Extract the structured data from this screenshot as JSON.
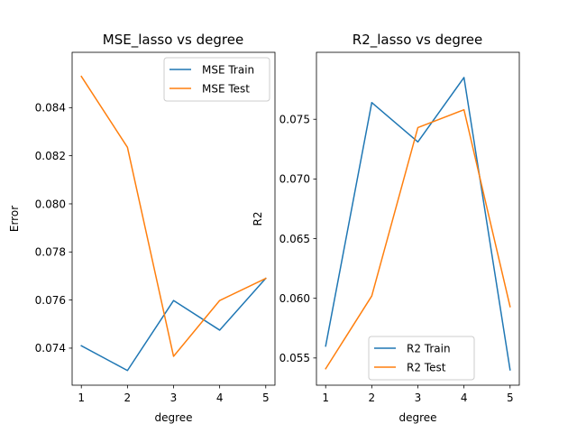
{
  "chart_data": [
    {
      "type": "line",
      "title": "MSE_lasso vs degree",
      "xlabel": "degree",
      "ylabel": "Error",
      "x": [
        1,
        2,
        3,
        4,
        5
      ],
      "xticks": [
        "1",
        "2",
        "3",
        "4",
        "5"
      ],
      "xlim": [
        0.8,
        5.2
      ],
      "ylim": [
        0.07246,
        0.0863
      ],
      "yticks": [
        0.074,
        0.076,
        0.078,
        0.08,
        0.082,
        0.084
      ],
      "ytick_labels": [
        "0.074",
        "0.076",
        "0.078",
        "0.080",
        "0.082",
        "0.084"
      ],
      "legend_position": "top-right",
      "grid": false,
      "series": [
        {
          "name": "MSE Train",
          "color": "#1f77b4",
          "values": [
            0.0741,
            0.07307,
            0.07598,
            0.07475,
            0.0769
          ]
        },
        {
          "name": "MSE Test",
          "color": "#ff7f0e",
          "values": [
            0.0853,
            0.08235,
            0.07366,
            0.07598,
            0.0769
          ]
        }
      ]
    },
    {
      "type": "line",
      "title": "R2_lasso vs degree",
      "xlabel": "degree",
      "ylabel": "R2",
      "x": [
        1,
        2,
        3,
        4,
        5
      ],
      "xticks": [
        "1",
        "2",
        "3",
        "4",
        "5"
      ],
      "xlim": [
        0.8,
        5.2
      ],
      "ylim": [
        0.05272,
        0.08061
      ],
      "yticks": [
        0.055,
        0.06,
        0.065,
        0.07,
        0.075
      ],
      "ytick_labels": [
        "0.055",
        "0.060",
        "0.065",
        "0.070",
        "0.075"
      ],
      "legend_position": "bottom-center",
      "grid": false,
      "series": [
        {
          "name": "R2 Train",
          "color": "#1f77b4",
          "values": [
            0.056,
            0.0764,
            0.0731,
            0.0785,
            0.054
          ]
        },
        {
          "name": "R2 Test",
          "color": "#ff7f0e",
          "values": [
            0.0541,
            0.0602,
            0.0743,
            0.0758,
            0.0593
          ]
        }
      ]
    }
  ]
}
